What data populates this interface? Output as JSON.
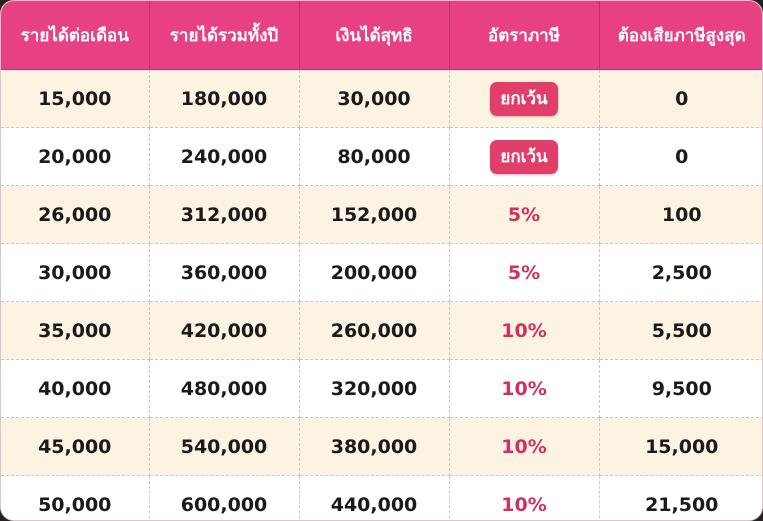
{
  "table": {
    "headers": [
      "รายได้ต่อเดือน",
      "รายได้รวมทั้งปี",
      "เงินได้สุทธิ",
      "อัตราภาษี",
      "ต้องเสียภาษีสูงสุด"
    ],
    "rows": [
      {
        "monthly": "15,000",
        "annual": "180,000",
        "net": "30,000",
        "rate": "ยกเว้น",
        "rate_style": "badge",
        "tax": "0"
      },
      {
        "monthly": "20,000",
        "annual": "240,000",
        "net": "80,000",
        "rate": "ยกเว้น",
        "rate_style": "badge",
        "tax": "0"
      },
      {
        "monthly": "26,000",
        "annual": "312,000",
        "net": "152,000",
        "rate": "5%",
        "rate_style": "text",
        "tax": "100"
      },
      {
        "monthly": "30,000",
        "annual": "360,000",
        "net": "200,000",
        "rate": "5%",
        "rate_style": "text",
        "tax": "2,500"
      },
      {
        "monthly": "35,000",
        "annual": "420,000",
        "net": "260,000",
        "rate": "10%",
        "rate_style": "text",
        "tax": "5,500"
      },
      {
        "monthly": "40,000",
        "annual": "480,000",
        "net": "320,000",
        "rate": "10%",
        "rate_style": "text",
        "tax": "9,500"
      },
      {
        "monthly": "45,000",
        "annual": "540,000",
        "net": "380,000",
        "rate": "10%",
        "rate_style": "text",
        "tax": "15,000"
      },
      {
        "monthly": "50,000",
        "annual": "600,000",
        "net": "440,000",
        "rate": "10%",
        "rate_style": "text",
        "tax": "21,500"
      }
    ]
  },
  "colors": {
    "header_bg": "#e84183",
    "row_alt_bg": "#fdf3e3",
    "rate_text": "#d2305f",
    "badge_bg": "#e13e6a"
  }
}
